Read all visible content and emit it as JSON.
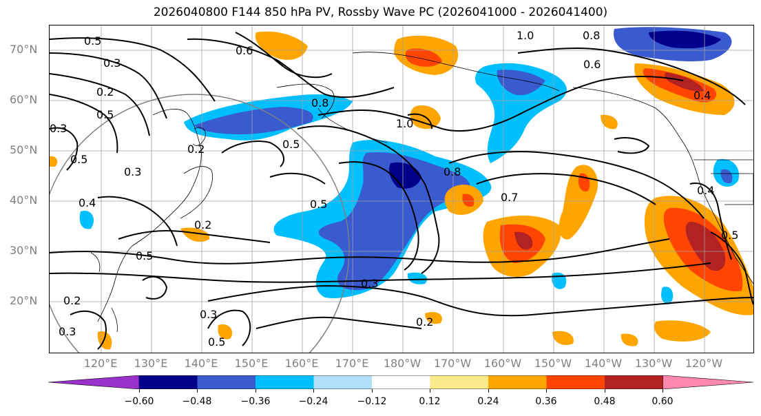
{
  "title": "2026040800 F144 850 hPa PV, Rossby Wave PC (2026041000 - 2026041400)",
  "lat_labels": [
    "70°N",
    "60°N",
    "50°N",
    "40°N",
    "30°N",
    "20°N"
  ],
  "lon_labels": [
    "120°E",
    "130°E",
    "140°E",
    "150°E",
    "160°E",
    "170°E",
    "180°W",
    "170°W",
    "160°W",
    "150°W",
    "140°W",
    "130°W",
    "120°W"
  ],
  "contour_labels": [
    "0.5",
    "0.3",
    "0.2",
    "0.5",
    "0.6",
    "1.0",
    "0.8",
    "0.6",
    "0.8",
    "1.0",
    "0.5",
    "0.5",
    "0.8",
    "0.3",
    "0.4",
    "0.5",
    "0.5",
    "0.7",
    "0.3",
    "0.2",
    "0.2",
    "0.3",
    "0.3",
    "0.4",
    "0.4",
    "0.2",
    "0.2",
    "0.5",
    "0.5",
    "0.3"
  ],
  "colorbar": {
    "colors": [
      "#9932cc",
      "#00008b",
      "#3a5bd0",
      "#00bfff",
      "#b0e0fa",
      "#ffffff",
      "#fce98a",
      "#ffa500",
      "#ff4500",
      "#b22222",
      "#ff88b0"
    ],
    "ticks": [
      "−0.60",
      "−0.48",
      "−0.36",
      "−0.24",
      "−0.12",
      "0.12",
      "0.24",
      "0.36",
      "0.48",
      "0.60"
    ]
  }
}
